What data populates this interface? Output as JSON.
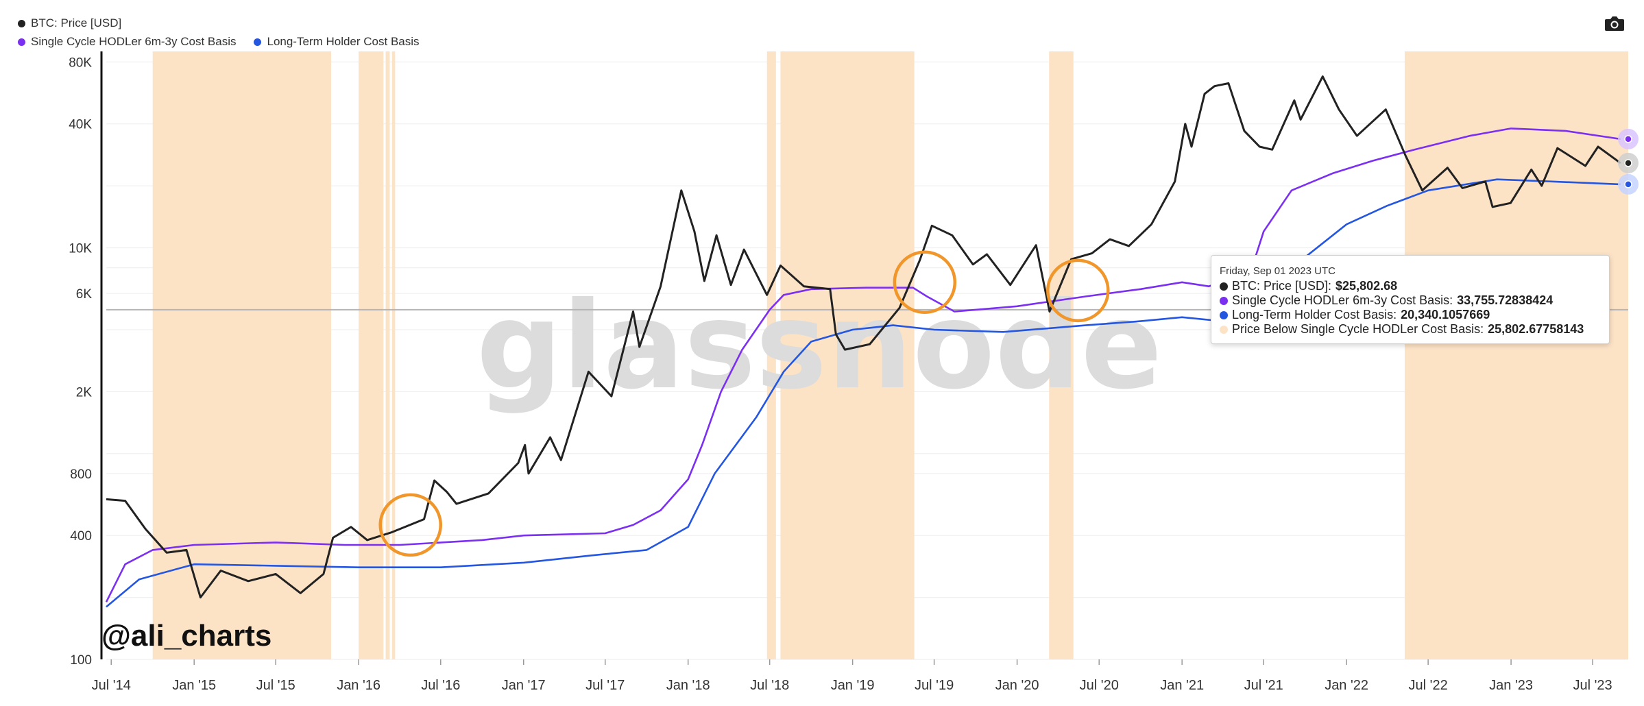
{
  "legend": {
    "items": [
      {
        "label": "BTC: Price [USD]",
        "color": "#222222"
      },
      {
        "label": "Single Cycle HODLer 6m-3y Cost Basis",
        "color": "#7b2ff0"
      },
      {
        "label": "Long-Term Holder Cost Basis",
        "color": "#2456e0"
      }
    ]
  },
  "toolbar": {
    "icon": "camera-icon"
  },
  "watermark": "glassnode",
  "handle": "@ali_charts",
  "tooltip": {
    "date": "Friday, Sep 01 2023 UTC",
    "rows": [
      {
        "label": "BTC: Price [USD]: ",
        "value": "$25,802.68",
        "color": "#222222"
      },
      {
        "label": "Single Cycle HODLer 6m-3y Cost Basis: ",
        "value": "33,755.72838424",
        "color": "#7b2ff0"
      },
      {
        "label": "Long-Term Holder Cost Basis: ",
        "value": "20,340.1057669",
        "color": "#2456e0"
      },
      {
        "label": "Price Below Single Cycle HODLer Cost Basis: ",
        "value": "25,802.67758143",
        "color": "#fde3c6"
      }
    ]
  },
  "chart_data": {
    "type": "line",
    "y_scale": "log",
    "ylim": [
      100,
      90000
    ],
    "y_ticks": [
      {
        "value": 100,
        "label": "100"
      },
      {
        "value": 400,
        "label": "400"
      },
      {
        "value": 800,
        "label": "800"
      },
      {
        "value": 2000,
        "label": "2K"
      },
      {
        "value": 6000,
        "label": "6K"
      },
      {
        "value": 10000,
        "label": "10K"
      },
      {
        "value": 40000,
        "label": "40K"
      },
      {
        "value": 80000,
        "label": "80K"
      }
    ],
    "x_range": [
      "2014-06-20",
      "2023-09-18"
    ],
    "x_ticks": [
      {
        "date": "2014-07-01",
        "label": "Jul '14"
      },
      {
        "date": "2015-01-01",
        "label": "Jan '15"
      },
      {
        "date": "2015-07-01",
        "label": "Jul '15"
      },
      {
        "date": "2016-01-01",
        "label": "Jan '16"
      },
      {
        "date": "2016-07-01",
        "label": "Jul '16"
      },
      {
        "date": "2017-01-01",
        "label": "Jan '17"
      },
      {
        "date": "2017-07-01",
        "label": "Jul '17"
      },
      {
        "date": "2018-01-01",
        "label": "Jan '18"
      },
      {
        "date": "2018-07-01",
        "label": "Jul '18"
      },
      {
        "date": "2019-01-01",
        "label": "Jan '19"
      },
      {
        "date": "2019-07-01",
        "label": "Jul '19"
      },
      {
        "date": "2020-01-01",
        "label": "Jan '20"
      },
      {
        "date": "2020-07-01",
        "label": "Jul '20"
      },
      {
        "date": "2021-01-01",
        "label": "Jan '21"
      },
      {
        "date": "2021-07-01",
        "label": "Jul '21"
      },
      {
        "date": "2022-01-01",
        "label": "Jan '22"
      },
      {
        "date": "2022-07-01",
        "label": "Jul '22"
      },
      {
        "date": "2023-01-01",
        "label": "Jan '23"
      },
      {
        "date": "2023-07-01",
        "label": "Jul '23"
      }
    ],
    "reference_line_value": 5000,
    "series": [
      {
        "name": "BTC: Price [USD]",
        "color": "#222222",
        "points": [
          [
            "2014-06-20",
            600
          ],
          [
            "2014-08-01",
            590
          ],
          [
            "2014-09-15",
            430
          ],
          [
            "2014-11-01",
            330
          ],
          [
            "2014-12-15",
            340
          ],
          [
            "2015-01-15",
            200
          ],
          [
            "2015-03-01",
            270
          ],
          [
            "2015-05-01",
            240
          ],
          [
            "2015-07-01",
            260
          ],
          [
            "2015-08-25",
            210
          ],
          [
            "2015-10-15",
            260
          ],
          [
            "2015-11-05",
            390
          ],
          [
            "2015-12-15",
            440
          ],
          [
            "2016-01-20",
            380
          ],
          [
            "2016-03-15",
            415
          ],
          [
            "2016-05-25",
            480
          ],
          [
            "2016-06-17",
            740
          ],
          [
            "2016-07-15",
            650
          ],
          [
            "2016-08-05",
            570
          ],
          [
            "2016-10-15",
            640
          ],
          [
            "2016-12-20",
            900
          ],
          [
            "2017-01-04",
            1100
          ],
          [
            "2017-01-12",
            800
          ],
          [
            "2017-03-01",
            1200
          ],
          [
            "2017-03-25",
            930
          ],
          [
            "2017-05-25",
            2500
          ],
          [
            "2017-07-15",
            1900
          ],
          [
            "2017-09-01",
            4900
          ],
          [
            "2017-09-15",
            3300
          ],
          [
            "2017-11-01",
            6500
          ],
          [
            "2017-12-17",
            19000
          ],
          [
            "2018-01-15",
            12000
          ],
          [
            "2018-02-06",
            6900
          ],
          [
            "2018-03-05",
            11500
          ],
          [
            "2018-04-06",
            6600
          ],
          [
            "2018-05-05",
            9800
          ],
          [
            "2018-06-25",
            5900
          ],
          [
            "2018-07-25",
            8200
          ],
          [
            "2018-09-15",
            6500
          ],
          [
            "2018-11-12",
            6300
          ],
          [
            "2018-11-25",
            3800
          ],
          [
            "2018-12-15",
            3200
          ],
          [
            "2019-02-08",
            3400
          ],
          [
            "2019-04-15",
            5100
          ],
          [
            "2019-05-30",
            8700
          ],
          [
            "2019-06-26",
            12800
          ],
          [
            "2019-08-10",
            11500
          ],
          [
            "2019-09-25",
            8300
          ],
          [
            "2019-10-26",
            9300
          ],
          [
            "2019-12-17",
            6600
          ],
          [
            "2020-02-12",
            10300
          ],
          [
            "2020-03-13",
            4900
          ],
          [
            "2020-04-30",
            8800
          ],
          [
            "2020-06-15",
            9400
          ],
          [
            "2020-07-25",
            11000
          ],
          [
            "2020-09-05",
            10200
          ],
          [
            "2020-10-25",
            13000
          ],
          [
            "2020-12-16",
            21000
          ],
          [
            "2021-01-08",
            40000
          ],
          [
            "2021-01-22",
            31000
          ],
          [
            "2021-02-20",
            56000
          ],
          [
            "2021-03-14",
            61000
          ],
          [
            "2021-04-14",
            63000
          ],
          [
            "2021-05-19",
            37000
          ],
          [
            "2021-06-22",
            31000
          ],
          [
            "2021-07-20",
            30000
          ],
          [
            "2021-09-07",
            52000
          ],
          [
            "2021-09-21",
            42000
          ],
          [
            "2021-11-09",
            68000
          ],
          [
            "2021-12-15",
            47000
          ],
          [
            "2022-01-24",
            35000
          ],
          [
            "2022-03-29",
            47000
          ],
          [
            "2022-05-12",
            28000
          ],
          [
            "2022-06-18",
            19000
          ],
          [
            "2022-08-13",
            24500
          ],
          [
            "2022-09-15",
            19500
          ],
          [
            "2022-11-05",
            21000
          ],
          [
            "2022-11-21",
            15800
          ],
          [
            "2022-12-31",
            16500
          ],
          [
            "2023-02-15",
            24000
          ],
          [
            "2023-03-10",
            20000
          ],
          [
            "2023-04-14",
            30500
          ],
          [
            "2023-06-15",
            25000
          ],
          [
            "2023-07-13",
            31000
          ],
          [
            "2023-09-01",
            25800
          ]
        ]
      },
      {
        "name": "Single Cycle HODLer 6m-3y Cost Basis",
        "color": "#7b2ff0",
        "points": [
          [
            "2014-06-20",
            190
          ],
          [
            "2014-08-01",
            290
          ],
          [
            "2014-10-01",
            340
          ],
          [
            "2015-01-01",
            360
          ],
          [
            "2015-07-01",
            370
          ],
          [
            "2015-12-01",
            360
          ],
          [
            "2016-04-01",
            360
          ],
          [
            "2016-10-01",
            380
          ],
          [
            "2017-01-01",
            400
          ],
          [
            "2017-07-01",
            410
          ],
          [
            "2017-09-01",
            450
          ],
          [
            "2017-11-01",
            530
          ],
          [
            "2018-01-01",
            750
          ],
          [
            "2018-02-01",
            1100
          ],
          [
            "2018-03-15",
            2000
          ],
          [
            "2018-05-01",
            3200
          ],
          [
            "2018-07-01",
            5000
          ],
          [
            "2018-08-01",
            5900
          ],
          [
            "2018-10-01",
            6300
          ],
          [
            "2019-02-01",
            6400
          ],
          [
            "2019-05-15",
            6400
          ],
          [
            "2019-06-15",
            5800
          ],
          [
            "2019-08-15",
            4900
          ],
          [
            "2019-10-01",
            5000
          ],
          [
            "2020-01-01",
            5200
          ],
          [
            "2020-06-01",
            5800
          ],
          [
            "2020-10-01",
            6300
          ],
          [
            "2021-01-01",
            6800
          ],
          [
            "2021-03-01",
            6500
          ],
          [
            "2021-06-01",
            7500
          ],
          [
            "2021-07-01",
            12000
          ],
          [
            "2021-09-01",
            19000
          ],
          [
            "2021-12-01",
            23000
          ],
          [
            "2022-03-01",
            26500
          ],
          [
            "2022-06-01",
            30000
          ],
          [
            "2022-10-01",
            35000
          ],
          [
            "2023-01-01",
            38000
          ],
          [
            "2023-05-01",
            37000
          ],
          [
            "2023-09-01",
            33756
          ]
        ]
      },
      {
        "name": "Long-Term Holder Cost Basis",
        "color": "#2456e0",
        "points": [
          [
            "2014-06-20",
            180
          ],
          [
            "2014-09-01",
            245
          ],
          [
            "2015-01-01",
            290
          ],
          [
            "2015-07-01",
            285
          ],
          [
            "2016-01-01",
            280
          ],
          [
            "2016-07-01",
            280
          ],
          [
            "2017-01-01",
            295
          ],
          [
            "2017-06-01",
            320
          ],
          [
            "2017-10-01",
            340
          ],
          [
            "2018-01-01",
            440
          ],
          [
            "2018-03-01",
            800
          ],
          [
            "2018-06-01",
            1500
          ],
          [
            "2018-08-01",
            2500
          ],
          [
            "2018-10-01",
            3500
          ],
          [
            "2019-01-01",
            4000
          ],
          [
            "2019-04-01",
            4200
          ],
          [
            "2019-07-01",
            4000
          ],
          [
            "2019-12-01",
            3900
          ],
          [
            "2020-06-01",
            4200
          ],
          [
            "2020-10-01",
            4400
          ],
          [
            "2021-01-01",
            4600
          ],
          [
            "2021-04-01",
            4400
          ],
          [
            "2021-07-01",
            5200
          ],
          [
            "2021-10-01",
            9000
          ],
          [
            "2022-01-01",
            13000
          ],
          [
            "2022-04-01",
            16000
          ],
          [
            "2022-07-01",
            19000
          ],
          [
            "2022-12-01",
            21500
          ],
          [
            "2023-04-01",
            21000
          ],
          [
            "2023-09-01",
            20340
          ]
        ]
      }
    ],
    "shaded_series": {
      "name": "Price Below Single Cycle HODLer Cost Basis",
      "color": "#fde3c6",
      "periods": [
        [
          "2014-10-01",
          "2015-11-01"
        ],
        [
          "2016-01-01",
          "2016-02-25"
        ],
        [
          "2016-03-01",
          "2016-03-10"
        ],
        [
          "2016-03-15",
          "2016-03-22"
        ],
        [
          "2018-06-25",
          "2018-07-15"
        ],
        [
          "2018-07-25",
          "2019-05-18"
        ],
        [
          "2020-03-12",
          "2020-05-05"
        ],
        [
          "2022-05-10",
          "2023-09-18"
        ]
      ]
    },
    "highlight_circles": [
      {
        "date": "2016-04-25",
        "value": 450
      },
      {
        "date": "2019-06-10",
        "value": 6800
      },
      {
        "date": "2020-05-15",
        "value": 6200
      }
    ],
    "hover": {
      "date": "2023-09-01",
      "values": {
        "price": 25802.68,
        "single_cycle": 33755.72838424,
        "lth": 20340.1057669
      }
    }
  }
}
